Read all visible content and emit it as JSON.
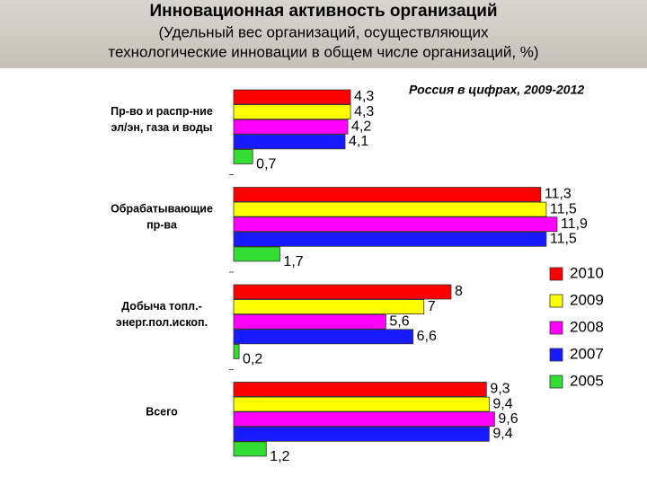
{
  "chart_data": {
    "type": "barh",
    "title": "Инновационная активность организаций",
    "subtitle": [
      "(Удельный вес организаций, осуществляющих",
      "технологические инновации в общем числе организаций, %)"
    ],
    "annotation": "Россия в цифрах, 2009-2012",
    "categories": [
      [
        "Пр-во и распр-ние",
        "эл/эн, газа и воды"
      ],
      [
        "Обрабатывающие",
        "пр-ва"
      ],
      [
        "Добыча топл.-",
        "энерг.пол.ископ."
      ],
      [
        "Всего"
      ]
    ],
    "series": [
      {
        "name": "2010",
        "color": "#ff0000",
        "values": [
          4.3,
          11.3,
          8,
          9.3
        ],
        "value_labels": [
          "4,3",
          "11,3",
          "8",
          "9,3"
        ]
      },
      {
        "name": "2009",
        "color": "#ffff00",
        "values": [
          4.3,
          11.5,
          7,
          9.4
        ],
        "value_labels": [
          "4,3",
          "11,5",
          "7",
          "9,4"
        ]
      },
      {
        "name": "2008",
        "color": "#ff00ff",
        "values": [
          4.2,
          11.9,
          5.6,
          9.6
        ],
        "value_labels": [
          "4,2",
          "11,9",
          "5,6",
          "9,6"
        ]
      },
      {
        "name": "2007",
        "color": "#1a1aff",
        "values": [
          4.1,
          11.5,
          6.6,
          9.4
        ],
        "value_labels": [
          "4,1",
          "11,5",
          "6,6",
          "9,4"
        ]
      },
      {
        "name": "2005",
        "color": "#33dd33",
        "values": [
          0.7,
          1.7,
          0.2,
          1.2
        ],
        "value_labels": [
          "0,7",
          "1,7",
          "0,2",
          "1,2"
        ]
      }
    ],
    "xlim": [
      0,
      12
    ],
    "legend": "right"
  }
}
